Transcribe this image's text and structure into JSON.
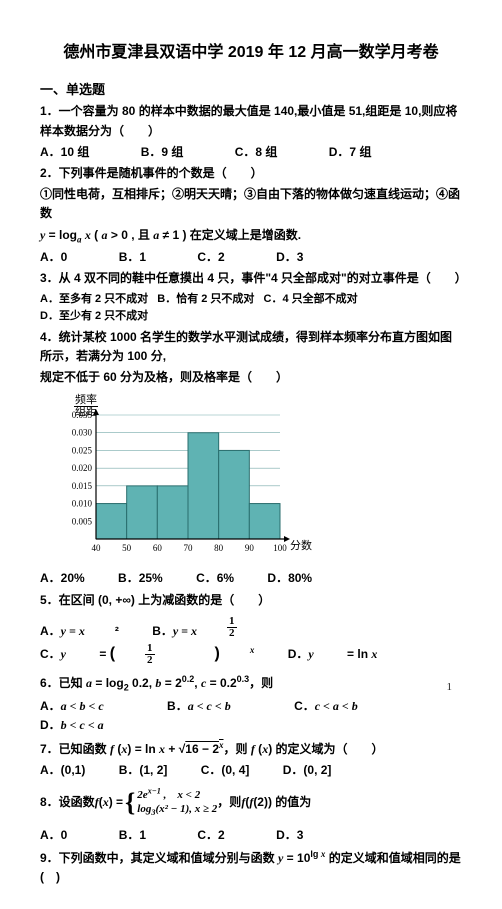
{
  "title": "德州市夏津县双语中学 2019 年 12 月高一数学月考卷",
  "section1": "一、单选题",
  "q1": "1．一个容量为 80 的样本中数据的最大值是 140,最小值是 51,组距是 10,则应将样本数据分为（　　）",
  "q1o": {
    "A": "A．10 组",
    "B": "B．9 组",
    "C": "C．8 组",
    "D": "D．7 组"
  },
  "q2": "2．下列事件是随机事件的个数是（　　）",
  "q2sub": "①同性电荷，互相排斥；②明天天晴；③自由下落的物体做匀速直线运动；④函数",
  "q2eq": "y = logₐ x ( a > 0 , 且 a ≠ 1 ) 在定义域上是增函数.",
  "q2o": {
    "A": "A．0",
    "B": "B．1",
    "C": "C．2",
    "D": "D．3"
  },
  "q3": "3．从 4 双不同的鞋中任意摸出 4 只，事件\"4 只全部成对\"的对立事件是（　　）",
  "q3o": {
    "A": "A．至多有 2 只不成对",
    "B": "B．恰有 2 只不成对",
    "C": "C．4 只全部不成对",
    "D": "D．至少有 2 只不成对"
  },
  "q4a": "4．统计某校 1000 名学生的数学水平测试成绩，得到样本频率分布直方图如图所示，若满分为 100 分,",
  "q4b": "规定不低于 60 分为及格，则及格率是（　　）",
  "chart": {
    "yTicks": [
      0.005,
      0.01,
      0.015,
      0.02,
      0.025,
      0.03,
      0.035
    ],
    "xTicks": [
      40,
      50,
      60,
      70,
      80,
      90,
      100
    ],
    "bars": [
      {
        "x0": 40,
        "x1": 50,
        "h": 0.01
      },
      {
        "x0": 50,
        "x1": 60,
        "h": 0.015
      },
      {
        "x0": 60,
        "x1": 70,
        "h": 0.015
      },
      {
        "x0": 70,
        "x1": 80,
        "h": 0.03
      },
      {
        "x0": 80,
        "x1": 90,
        "h": 0.025
      },
      {
        "x0": 90,
        "x1": 100,
        "h": 0.01
      }
    ],
    "barFill": "#5fb3b3",
    "barStroke": "#2a6e6e",
    "gridColor": "#7aa",
    "yLabelTop": "频率",
    "yLabelBot": "组距",
    "xLabel": "分数"
  },
  "q4o": {
    "A": "A．20%",
    "B": "B．25%",
    "C": "C．6%",
    "D": "D．80%"
  },
  "q5": "5．在区间 (0, +∞) 上为减函数的是（　　）",
  "q5o": {
    "A": "A．y = x²",
    "B": "B．",
    "C": "C．",
    "D": "D．y = ln x"
  },
  "q5bEq": "y = x^{1/2}",
  "q5cEq": "y = (1/2)^x",
  "q6": "6．已知 a = log₂ 0.2, b = 2^{0.2}, c = 0.2^{0.3}，则",
  "q6o": {
    "A": "A．a < b < c",
    "B": "B．a < c < b",
    "C": "C．c < a < b",
    "D": "D．b < c < a"
  },
  "q7": "7．已知函数 f (x) = ln x + √(16 − 2ˣ)，则 f (x) 的定义域为（　　）",
  "q7o": {
    "A": "A．(0,1)",
    "B": "B．(1, 2]",
    "C": "C．(0, 4]",
    "D": "D．(0, 2]"
  },
  "q8a": "8．设函数 f (x) = ",
  "q8b": "，则 f ( f (2)) 的值为",
  "q8o": {
    "A": "A．0",
    "B": "B．1",
    "C": "C．2",
    "D": "D．3"
  },
  "q8piece1": "2e^{x−1} ,　x < 2",
  "q8piece2": "log₃ (x² − 1), x ≥ 2",
  "q9": "9．下列函数中，其定义域和值域分别与函数 y = 10^{lg x} 的定义域和值域相同的是(　)",
  "pageNum": "1"
}
